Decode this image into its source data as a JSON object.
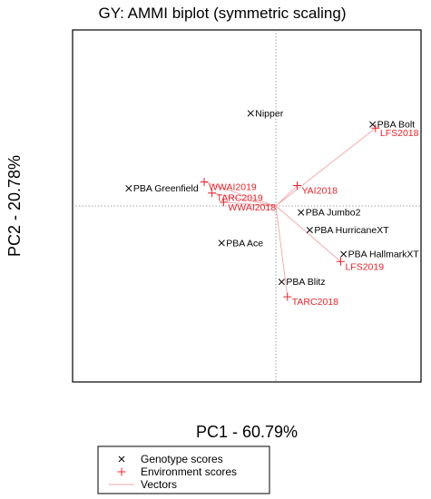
{
  "chart_data": {
    "type": "scatter",
    "title": "GY: AMMI biplot (symmetric scaling)",
    "xlabel": "PC1 - 60.79%",
    "ylabel": "PC2 - 20.78%",
    "xlim": [
      -10.5,
      7.5
    ],
    "ylim": [
      -9.5,
      9.5
    ],
    "origin_lines": "dotted",
    "colors": {
      "genotype": "#000000",
      "environment": "#e8242c",
      "vector": "#f4a6a9"
    },
    "genotypes": [
      {
        "name": "Nipper",
        "x": -1.3,
        "y": 5.0
      },
      {
        "name": "PBA Bolt",
        "x": 5.0,
        "y": 4.4
      },
      {
        "name": "PBA Greenfield",
        "x": -7.6,
        "y": 0.95
      },
      {
        "name": "PBA Jumbo2",
        "x": 1.3,
        "y": -0.35
      },
      {
        "name": "PBA HurricaneXT",
        "x": 1.75,
        "y": -1.3
      },
      {
        "name": "PBA Ace",
        "x": -2.8,
        "y": -2.0
      },
      {
        "name": "PBA HallmarkXT",
        "x": 3.5,
        "y": -2.6
      },
      {
        "name": "PBA Blitz",
        "x": 0.3,
        "y": -4.1
      }
    ],
    "environments": [
      {
        "name": "LFS2018",
        "x": 5.15,
        "y": 4.2
      },
      {
        "name": "WWAI2019",
        "x": -3.7,
        "y": 1.3
      },
      {
        "name": "YAI2018",
        "x": 1.1,
        "y": 1.1
      },
      {
        "name": "TARC2019",
        "x": -3.3,
        "y": 0.7
      },
      {
        "name": "WWAI2018",
        "x": -2.7,
        "y": 0.2
      },
      {
        "name": "LFS2019",
        "x": 3.35,
        "y": -3.0
      },
      {
        "name": "TARC2018",
        "x": 0.6,
        "y": -4.9
      }
    ],
    "legend": {
      "position": "bottom-center",
      "entries": [
        "Genotype scores",
        "Environment scores",
        "Vectors"
      ]
    }
  }
}
